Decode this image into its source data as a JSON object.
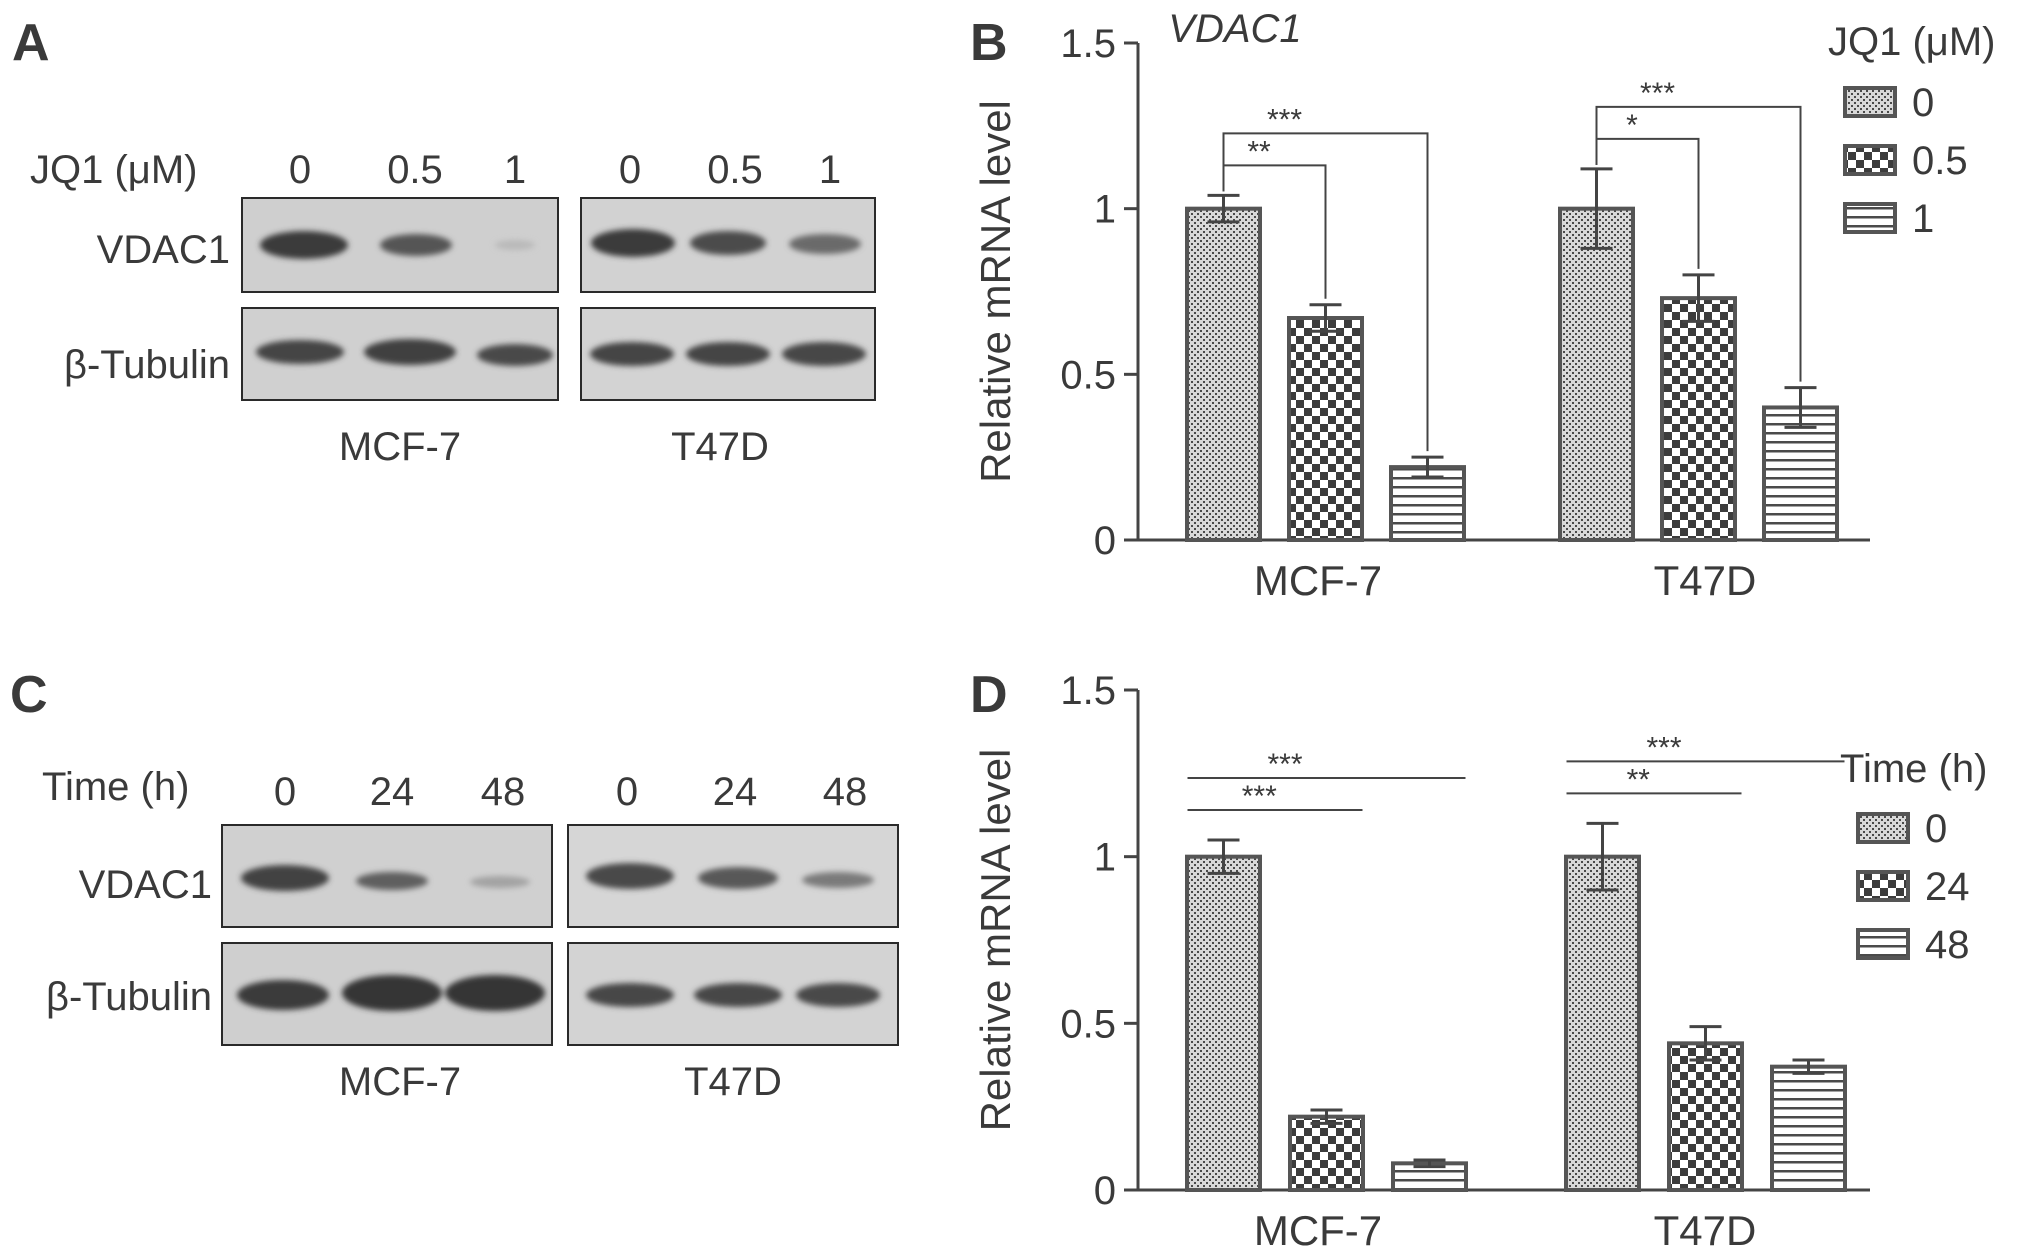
{
  "panels": {
    "A": {
      "letter": "A",
      "header_label": "JQ1 (μM)",
      "lanes": [
        "0",
        "0.5",
        "1",
        "0",
        "0.5",
        "1"
      ],
      "rows": [
        "VDAC1",
        "β-Tubulin"
      ],
      "cell_lines": [
        "MCF-7",
        "T47D"
      ]
    },
    "C": {
      "letter": "C",
      "header_label": "Time (h)",
      "lanes": [
        "0",
        "24",
        "48",
        "0",
        "24",
        "48"
      ],
      "rows": [
        "VDAC1",
        "β-Tubulin"
      ],
      "cell_lines": [
        "MCF-7",
        "T47D"
      ]
    },
    "B": {
      "letter": "B"
    },
    "D": {
      "letter": "D"
    }
  },
  "chart_data": [
    {
      "panel": "B",
      "type": "bar",
      "title": "VDAC1",
      "xlabel": "",
      "ylabel": "Relative mRNA level",
      "ylim": [
        0,
        1.5
      ],
      "yticks": [
        "0",
        "0.5",
        "1",
        "1.5"
      ],
      "grid": false,
      "legend": {
        "title": "JQ1 (μM)",
        "position": "top-right"
      },
      "categories": [
        "MCF-7",
        "T47D"
      ],
      "series": [
        {
          "name": "0",
          "values": [
            1.0,
            1.0
          ],
          "errors": [
            0.04,
            0.12
          ],
          "pattern": "fine-dots"
        },
        {
          "name": "0.5",
          "values": [
            0.67,
            0.73
          ],
          "errors": [
            0.04,
            0.07
          ],
          "pattern": "checker"
        },
        {
          "name": "1",
          "values": [
            0.22,
            0.4
          ],
          "errors": [
            0.03,
            0.06
          ],
          "pattern": "horizontal-lines"
        }
      ],
      "significance": [
        {
          "category": "MCF-7",
          "from": 0,
          "to": 1,
          "label": "**"
        },
        {
          "category": "MCF-7",
          "from": 0,
          "to": 2,
          "label": "***"
        },
        {
          "category": "T47D",
          "from": 0,
          "to": 1,
          "label": "*"
        },
        {
          "category": "T47D",
          "from": 0,
          "to": 2,
          "label": "***"
        }
      ]
    },
    {
      "panel": "D",
      "type": "bar",
      "title": "",
      "xlabel": "",
      "ylabel": "Relative mRNA level",
      "ylim": [
        0,
        1.5
      ],
      "yticks": [
        "0",
        "0.5",
        "1",
        "1.5"
      ],
      "grid": false,
      "legend": {
        "title": "Time (h)",
        "position": "top-right"
      },
      "categories": [
        "MCF-7",
        "T47D"
      ],
      "series": [
        {
          "name": "0",
          "values": [
            1.0,
            1.0
          ],
          "errors": [
            0.05,
            0.1
          ],
          "pattern": "fine-dots"
        },
        {
          "name": "24",
          "values": [
            0.22,
            0.44
          ],
          "errors": [
            0.02,
            0.05
          ],
          "pattern": "checker"
        },
        {
          "name": "48",
          "values": [
            0.08,
            0.37
          ],
          "errors": [
            0.01,
            0.02
          ],
          "pattern": "horizontal-lines"
        }
      ],
      "significance": [
        {
          "category": "MCF-7",
          "from": 0,
          "to": 1,
          "label": "***"
        },
        {
          "category": "MCF-7",
          "from": 0,
          "to": 2,
          "label": "***"
        },
        {
          "category": "T47D",
          "from": 0,
          "to": 1,
          "label": "**"
        },
        {
          "category": "T47D",
          "from": 0,
          "to": 2,
          "label": "***"
        }
      ]
    }
  ]
}
